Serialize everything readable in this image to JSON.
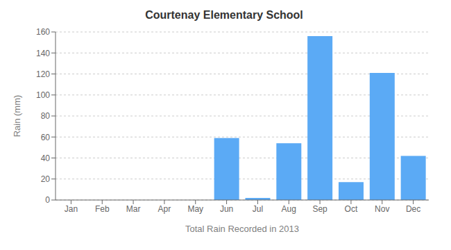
{
  "chart_data": {
    "type": "bar",
    "title": "Courtenay Elementary School",
    "xlabel": "Total Rain Recorded in 2013",
    "ylabel": "Rain (mm)",
    "categories": [
      "Jan",
      "Feb",
      "Mar",
      "Apr",
      "May",
      "Jun",
      "Jul",
      "Aug",
      "Sep",
      "Oct",
      "Nov",
      "Dec"
    ],
    "values": [
      0,
      0,
      0,
      0,
      0,
      59,
      2,
      54,
      156,
      17,
      121,
      42
    ],
    "color": "#5baaf5",
    "ylim": [
      0,
      160
    ],
    "yticks": [
      0,
      20,
      40,
      60,
      80,
      100,
      120,
      140,
      160
    ],
    "grid": true
  }
}
